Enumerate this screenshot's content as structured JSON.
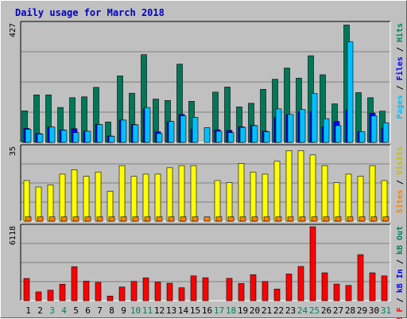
{
  "chart_data": {
    "type": "bar",
    "title": "Daily usage for March 2018",
    "x": [
      "1",
      "2",
      "3",
      "4",
      "5",
      "6",
      "7",
      "8",
      "9",
      "10",
      "11",
      "12",
      "13",
      "14",
      "15",
      "16",
      "17",
      "18",
      "19",
      "20",
      "21",
      "22",
      "23",
      "24",
      "25",
      "26",
      "27",
      "28",
      "29",
      "30",
      "31"
    ],
    "weekend_days": [
      "3",
      "4",
      "10",
      "11",
      "17",
      "18",
      "24",
      "25",
      "31"
    ],
    "panels": [
      {
        "name": "hits-files-pages",
        "max_label": "427",
        "ylim": [
          0,
          427
        ],
        "labels": [
          {
            "text": "Pages",
            "color": "#00c0ff"
          },
          {
            "text": " / ",
            "color": "#000000"
          },
          {
            "text": "Files",
            "color": "#0000ff"
          },
          {
            "text": " / ",
            "color": "#000000"
          },
          {
            "text": "Hits",
            "color": "#008060"
          }
        ],
        "series": [
          {
            "name": "Hits",
            "color": "#007858",
            "values": [
              113,
              170,
              170,
              125,
              160,
              163,
              197,
              73,
              238,
              176,
              314,
              155,
              150,
              280,
              147,
              0,
              180,
              198,
              127,
              140,
              190,
              226,
              266,
              230,
              310,
              242,
              138,
              420,
              178,
              160,
              112
            ]
          },
          {
            "name": "Files",
            "color": "#0000ff",
            "values": [
              50,
              32,
              55,
              45,
              49,
              40,
              64,
              23,
              80,
              64,
              120,
              38,
              75,
              100,
              48,
              0,
              45,
              43,
              56,
              61,
              40,
              90,
              100,
              110,
              110,
              55,
              75,
              115,
              38,
              105,
              50
            ]
          },
          {
            "name": "Pages",
            "color": "#00c0ff",
            "values": [
              47,
              30,
              55,
              44,
              35,
              40,
              64,
              22,
              80,
              63,
              125,
              32,
              75,
              95,
              90,
              53,
              40,
              35,
              54,
              60,
              38,
              120,
              100,
              118,
              175,
              85,
              60,
              360,
              38,
              95,
              70
            ]
          }
        ]
      },
      {
        "name": "visits-sites",
        "max_label": "35",
        "ylim": [
          0,
          35
        ],
        "labels": [
          {
            "text": "Sites",
            "color": "#ff8000"
          },
          {
            "text": " / ",
            "color": "#000000"
          },
          {
            "text": "Visits",
            "color": "#c0c000"
          }
        ],
        "series": [
          {
            "name": "Visits",
            "color": "#ffff00",
            "values": [
              19,
              16,
              17,
              22,
              24,
              21,
              23,
              14,
              26,
              21,
              22,
              22,
              25,
              26,
              26,
              0,
              19,
              18,
              27,
              23,
              22,
              28,
              33,
              33,
              31,
              26,
              18,
              22,
              21,
              26,
              19
            ]
          },
          {
            "name": "Sites",
            "color": "#ff8000",
            "values": [
              2,
              2,
              2,
              2,
              2,
              2,
              2,
              2,
              2,
              2,
              2,
              2,
              2,
              2,
              2,
              2,
              2,
              2,
              2,
              2,
              2,
              2,
              2,
              2,
              2,
              2,
              2,
              2,
              2,
              2,
              2
            ]
          }
        ]
      },
      {
        "name": "kb",
        "max_label": "6118",
        "ylim": [
          0,
          6118
        ],
        "labels": [
          {
            "text": "kB F",
            "color": "#ff0000"
          },
          {
            "text": " / ",
            "color": "#000000"
          },
          {
            "text": "kB In",
            "color": "#0000ff"
          },
          {
            "text": " / ",
            "color": "#000000"
          },
          {
            "text": "kB Out",
            "color": "#008060"
          }
        ],
        "series": [
          {
            "name": "kB F",
            "color": "#ff0000",
            "values": [
              1820,
              720,
              860,
              1350,
              2780,
              1600,
              1500,
              380,
              1120,
              1580,
              1870,
              1520,
              1430,
              1060,
              2030,
              1880,
              0,
              1830,
              1410,
              2130,
              1570,
              950,
              2190,
              2800,
              6050,
              2280,
              1360,
              1250,
              3770,
              2280,
              2030
            ]
          }
        ]
      }
    ]
  }
}
